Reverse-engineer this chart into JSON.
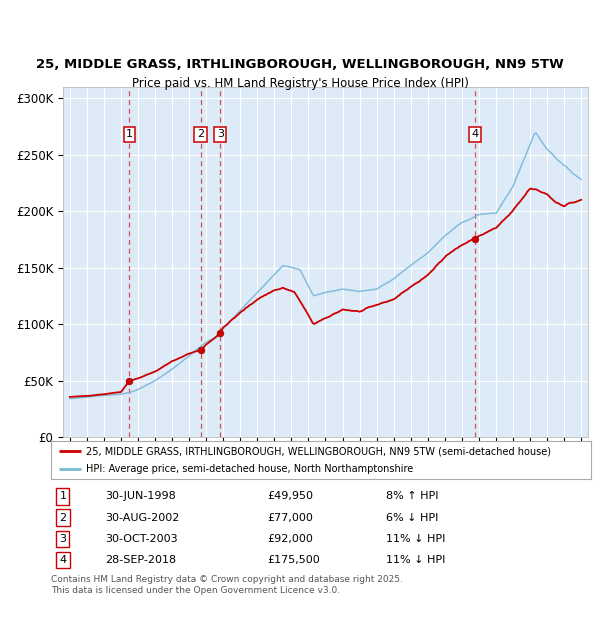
{
  "title1": "25, MIDDLE GRASS, IRTHLINGBOROUGH, WELLINGBOROUGH, NN9 5TW",
  "title2": "Price paid vs. HM Land Registry's House Price Index (HPI)",
  "legend_line1": "25, MIDDLE GRASS, IRTHLINGBOROUGH, WELLINGBOROUGH, NN9 5TW (semi-detached house)",
  "legend_line2": "HPI: Average price, semi-detached house, North Northamptonshire",
  "footnote": "Contains HM Land Registry data © Crown copyright and database right 2025.\nThis data is licensed under the Open Government Licence v3.0.",
  "transactions": [
    {
      "n": 1,
      "date": "30-JUN-1998",
      "price": "£49,950",
      "pct": "8%",
      "dir": "↑"
    },
    {
      "n": 2,
      "date": "30-AUG-2002",
      "price": "£77,000",
      "pct": "6%",
      "dir": "↓"
    },
    {
      "n": 3,
      "date": "30-OCT-2003",
      "price": "£92,000",
      "pct": "11%",
      "dir": "↓"
    },
    {
      "n": 4,
      "date": "28-SEP-2018",
      "price": "£175,500",
      "pct": "11%",
      "dir": "↓"
    }
  ],
  "sale_dates_num": [
    1998.5,
    2002.667,
    2003.833,
    2018.75
  ],
  "sale_prices": [
    49950,
    77000,
    92000,
    175500
  ],
  "hpi_color": "#7ab8d9",
  "price_color": "#cc0000",
  "plot_bg": "#ddeaf7",
  "ylim": [
    0,
    310000
  ],
  "xlim_start": 1994.6,
  "xlim_end": 2025.4,
  "yticks": [
    0,
    50000,
    100000,
    150000,
    200000,
    250000,
    300000
  ],
  "ytick_labels": [
    "£0",
    "£50K",
    "£100K",
    "£150K",
    "£200K",
    "£250K",
    "£300K"
  ]
}
